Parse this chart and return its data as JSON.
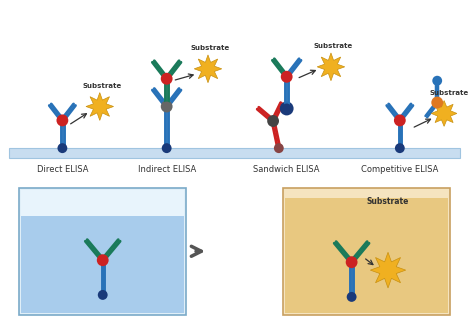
{
  "background_color": "#ffffff",
  "plate_color": "#c8ddf0",
  "plate_line_color": "#a0c4e0",
  "labels": [
    "Direct ELISA",
    "Indirect ELISA",
    "Sandwich ELISA",
    "Competitive ELISA"
  ],
  "substrate_label": "Substrate",
  "arrow_color": "#333333",
  "blue_color": "#2872b8",
  "teal_color": "#1a7a5a",
  "red_color": "#cc2222",
  "dark_blue": "#1a3a7a",
  "gold_color": "#f0b020",
  "orange_color": "#e07820",
  "box1_fill": "#d0e8f8",
  "box1_water": "#a8ccec",
  "box1_edge": "#6090b8",
  "box2_fill": "#f0ddb0",
  "box2_water": "#e8c880",
  "box2_edge": "#b8904a"
}
